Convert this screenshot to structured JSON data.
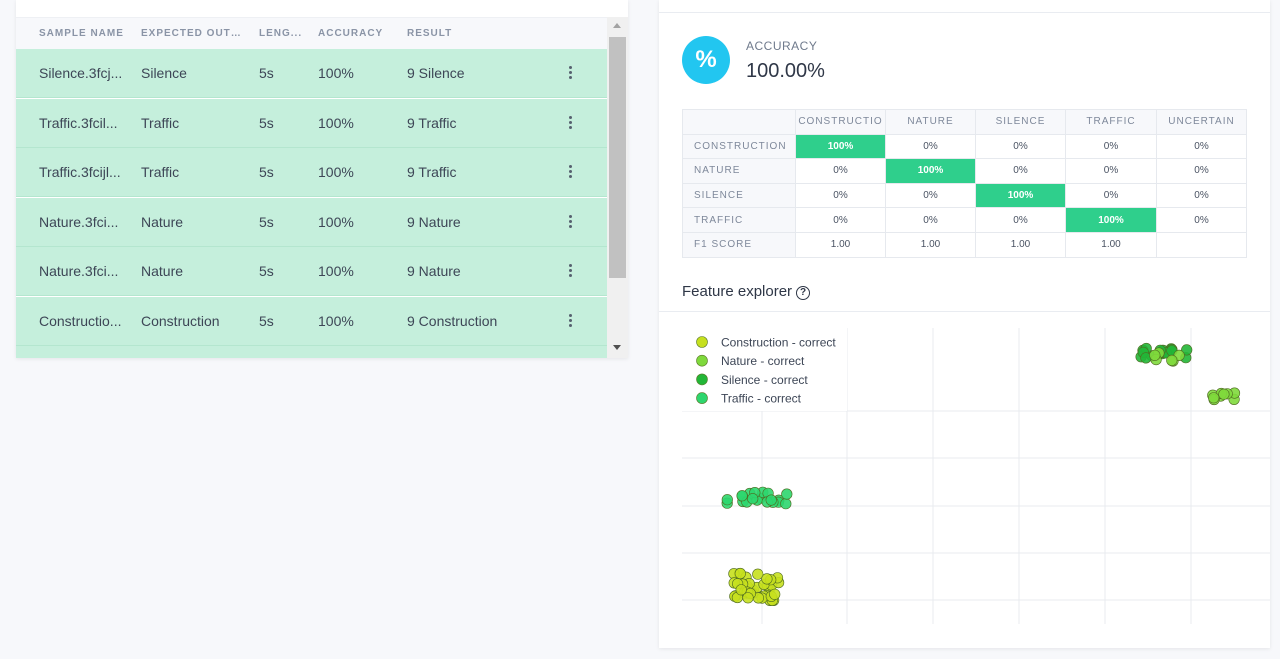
{
  "table": {
    "headers": [
      "SAMPLE NAME",
      "EXPECTED OUTC...",
      "LENG...",
      "ACCURACY",
      "RESULT"
    ],
    "rows": [
      {
        "name": "Silence.3fcj...",
        "expected": "Silence",
        "length": "5s",
        "accuracy": "100%",
        "result": "9 Silence"
      },
      {
        "name": "Traffic.3fcil...",
        "expected": "Traffic",
        "length": "5s",
        "accuracy": "100%",
        "result": "9 Traffic"
      },
      {
        "name": "Traffic.3fcijl...",
        "expected": "Traffic",
        "length": "5s",
        "accuracy": "100%",
        "result": "9 Traffic"
      },
      {
        "name": "Nature.3fci...",
        "expected": "Nature",
        "length": "5s",
        "accuracy": "100%",
        "result": "9 Nature"
      },
      {
        "name": "Nature.3fci...",
        "expected": "Nature",
        "length": "5s",
        "accuracy": "100%",
        "result": "9 Nature"
      },
      {
        "name": "Constructio...",
        "expected": "Construction",
        "length": "5s",
        "accuracy": "100%",
        "result": "9 Construction"
      },
      {
        "name": "",
        "expected": "",
        "length": "",
        "accuracy": "",
        "result": ""
      }
    ]
  },
  "accuracy": {
    "icon": "%",
    "label": "ACCURACY",
    "value": "100.00%"
  },
  "confusion_matrix": {
    "columns": [
      "CONSTRUCTIO",
      "NATURE",
      "SILENCE",
      "TRAFFIC",
      "UNCERTAIN"
    ],
    "rows": [
      {
        "label": "CONSTRUCTION",
        "cells": [
          "100%",
          "0%",
          "0%",
          "0%",
          "0%"
        ],
        "hit": 0
      },
      {
        "label": "NATURE",
        "cells": [
          "0%",
          "100%",
          "0%",
          "0%",
          "0%"
        ],
        "hit": 1
      },
      {
        "label": "SILENCE",
        "cells": [
          "0%",
          "0%",
          "100%",
          "0%",
          "0%"
        ],
        "hit": 2
      },
      {
        "label": "TRAFFIC",
        "cells": [
          "0%",
          "0%",
          "0%",
          "100%",
          "0%"
        ],
        "hit": 3
      },
      {
        "label": "F1 SCORE",
        "cells": [
          "1.00",
          "1.00",
          "1.00",
          "1.00",
          ""
        ],
        "hit": -1
      }
    ],
    "hit_color": "#2fcf8c"
  },
  "feature_explorer": {
    "title": "Feature explorer",
    "help_icon": "?",
    "legend": [
      {
        "label": "Construction - correct",
        "color": "#c6e01e"
      },
      {
        "label": "Nature - correct",
        "color": "#7fd93c"
      },
      {
        "label": "Silence - correct",
        "color": "#22b637"
      },
      {
        "label": "Traffic - correct",
        "color": "#2ed66e"
      }
    ]
  },
  "colors": {
    "row_bg": "#c5efdc",
    "accent": "#22c6f0"
  }
}
